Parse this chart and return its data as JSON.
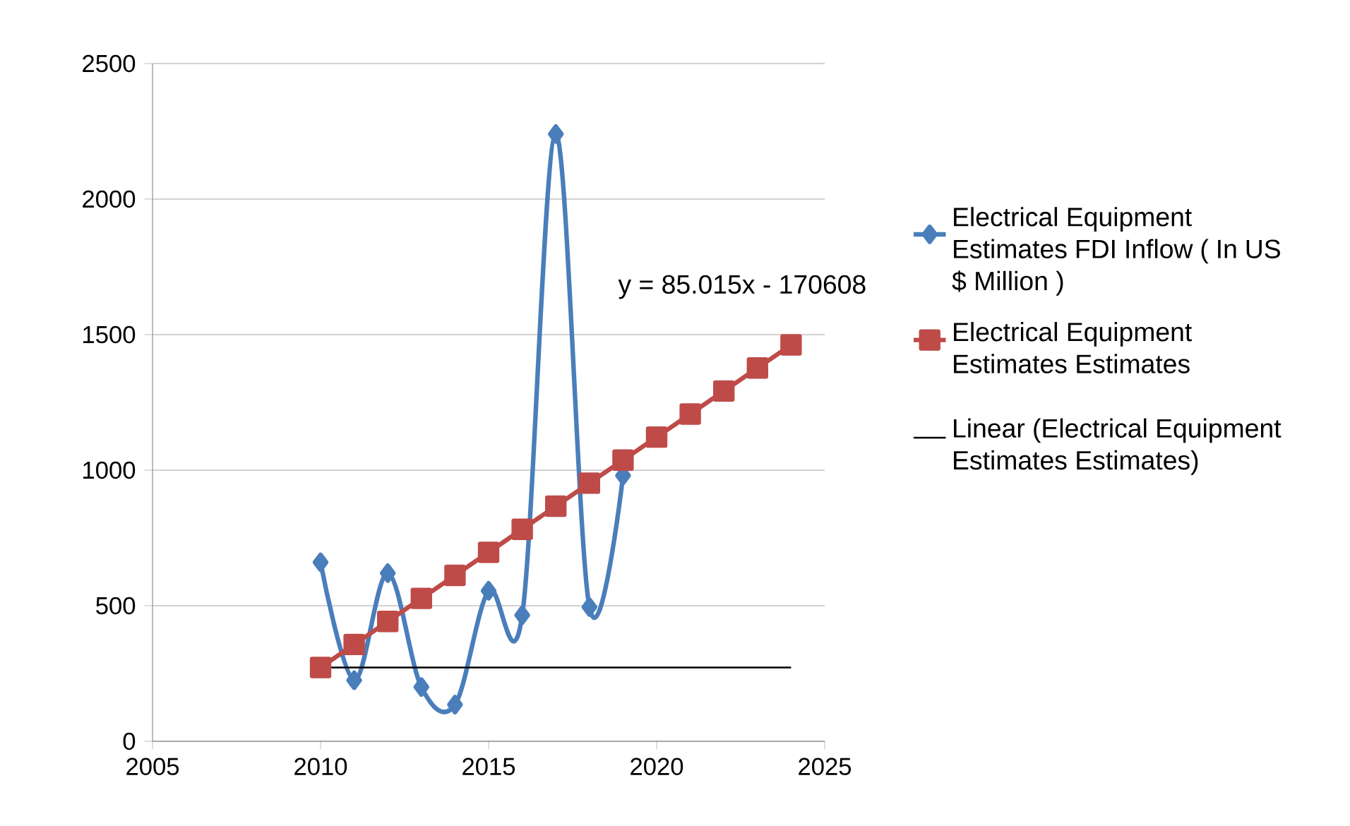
{
  "chart_data": {
    "type": "line",
    "series": [
      {
        "name": "Electrical Equipment Estimates FDI Inflow ( In US $ Million )",
        "color": "#4a7ebb",
        "marker": "diamond",
        "x": [
          2010,
          2011,
          2012,
          2013,
          2014,
          2015,
          2016,
          2017,
          2018,
          2019
        ],
        "values": [
          660,
          225,
          620,
          200,
          135,
          555,
          465,
          2240,
          495,
          980
        ]
      },
      {
        "name": "Electrical Equipment Estimates Estimates",
        "color": "#be4b48",
        "marker": "square",
        "x": [
          2010,
          2011,
          2012,
          2013,
          2014,
          2015,
          2016,
          2017,
          2018,
          2019,
          2020,
          2021,
          2022,
          2023,
          2024
        ],
        "values": [
          272,
          357,
          442,
          527,
          612,
          697,
          782,
          867,
          952,
          1037,
          1122,
          1207,
          1292,
          1377,
          1462
        ]
      },
      {
        "name": "Linear (Electrical Equipment Estimates Estimates)",
        "color": "#000000",
        "marker": "none",
        "x": [
          2010,
          2024
        ],
        "values": [
          272,
          272
        ]
      }
    ],
    "annotations": [
      "y = 85.015x - 170608"
    ],
    "xlim": [
      2005,
      2025
    ],
    "xticks": [
      2005,
      2010,
      2015,
      2020,
      2025
    ],
    "ylim": [
      0,
      2500
    ],
    "yticks": [
      0,
      500,
      1000,
      1500,
      2000,
      2500
    ],
    "grid": "y",
    "legend": "right"
  }
}
